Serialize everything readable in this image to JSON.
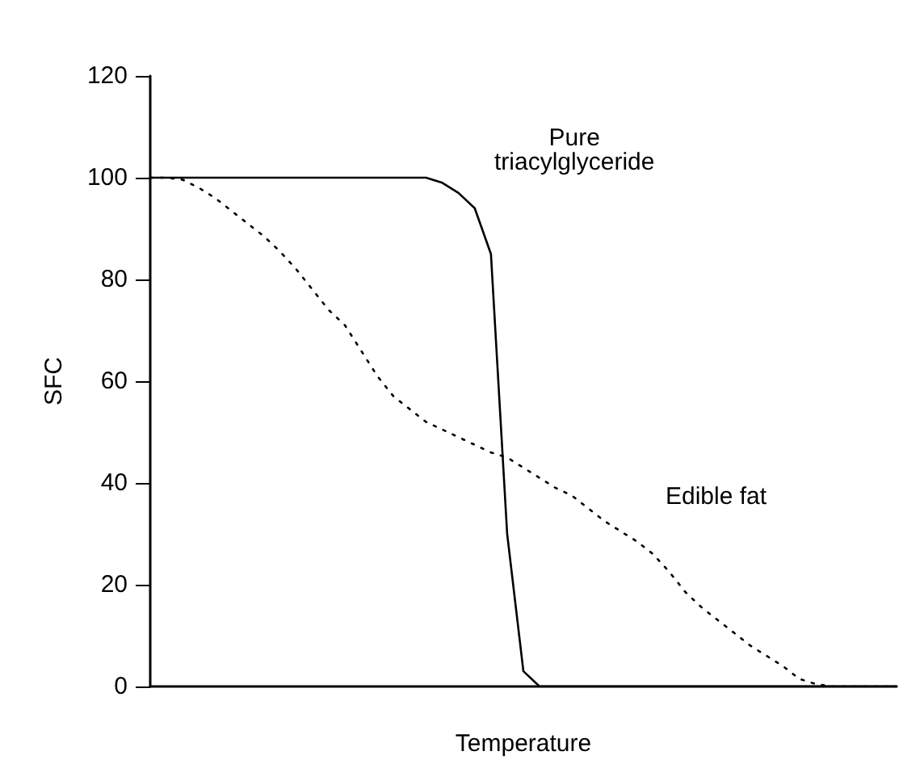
{
  "chart_data": {
    "type": "line",
    "xlabel": "Temperature",
    "ylabel": "SFC",
    "categories": [
      null,
      null,
      null,
      null,
      null,
      null,
      null,
      null,
      null,
      null,
      null,
      null,
      null,
      null,
      null,
      null,
      null,
      null,
      null,
      null,
      null,
      null,
      null,
      null,
      null,
      null,
      null,
      null,
      null,
      null,
      null,
      null,
      null,
      null,
      null,
      null,
      null,
      null,
      null,
      null,
      null,
      null,
      null,
      null,
      null,
      null,
      null
    ],
    "series": [
      {
        "name": "Pure\ntriacylglyceride",
        "color": "#000000",
        "line_style": "solid",
        "values": [
          100,
          100,
          100,
          100,
          100,
          100,
          100,
          100,
          100,
          100,
          100,
          100,
          100,
          100,
          100,
          100,
          100,
          100,
          99,
          97,
          94,
          85,
          30,
          3,
          0,
          0,
          0,
          0,
          0,
          0,
          0,
          0,
          0,
          0,
          0,
          0,
          0,
          0,
          0,
          0,
          0,
          0,
          0,
          0,
          0,
          0,
          0
        ]
      },
      {
        "name": "Edible fat",
        "color": "#000000",
        "line_style": "dotted",
        "values": [
          100,
          100,
          99.6,
          98,
          96,
          93.5,
          91,
          88.5,
          85.5,
          82,
          78,
          74,
          71,
          66,
          61,
          57,
          54.5,
          52,
          50.5,
          49,
          47.5,
          46,
          45,
          43,
          41,
          39,
          37.5,
          35,
          32.5,
          30.5,
          28.5,
          26,
          22.5,
          18.5,
          15.5,
          13,
          10.5,
          8,
          6,
          4,
          1.5,
          0.5,
          0,
          0,
          0,
          0,
          0
        ]
      }
    ],
    "ylim": [
      0,
      120
    ],
    "yticks": [
      0,
      20,
      40,
      60,
      80,
      100,
      120
    ],
    "grid": false,
    "legend": false,
    "marker": "none",
    "tick_labels": "y"
  }
}
